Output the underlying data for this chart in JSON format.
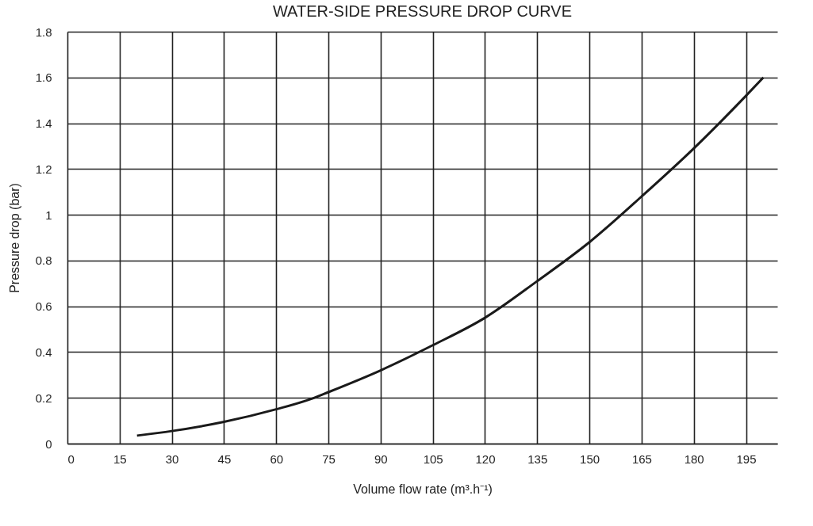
{
  "chart_data": {
    "type": "line",
    "title": "WATER-SIDE PRESSURE DROP CURVE",
    "xlabel": "Volume flow rate     (m³.h⁻¹)",
    "ylabel": "Pressure drop (bar)",
    "x": [
      20,
      30,
      45,
      60,
      70,
      75,
      90,
      105,
      120,
      135,
      150,
      165,
      180,
      195,
      200
    ],
    "series": [
      {
        "color": "#1a1a1a",
        "values": [
          0.035,
          0.055,
          0.095,
          0.15,
          0.195,
          0.225,
          0.32,
          0.43,
          0.55,
          0.71,
          0.88,
          1.08,
          1.29,
          1.52,
          1.6
        ]
      }
    ],
    "xlim": [
      0,
      204
    ],
    "xticks": [
      0,
      15,
      30,
      45,
      60,
      75,
      90,
      105,
      120,
      135,
      150,
      165,
      180,
      195
    ],
    "ylim": [
      0,
      1.8
    ],
    "yticks": [
      0,
      0.2,
      0.4,
      0.6,
      0.8,
      1,
      1.2,
      1.4,
      1.6,
      1.8
    ],
    "grid": true,
    "legend": false,
    "marker": "none",
    "line_style": "solid"
  }
}
